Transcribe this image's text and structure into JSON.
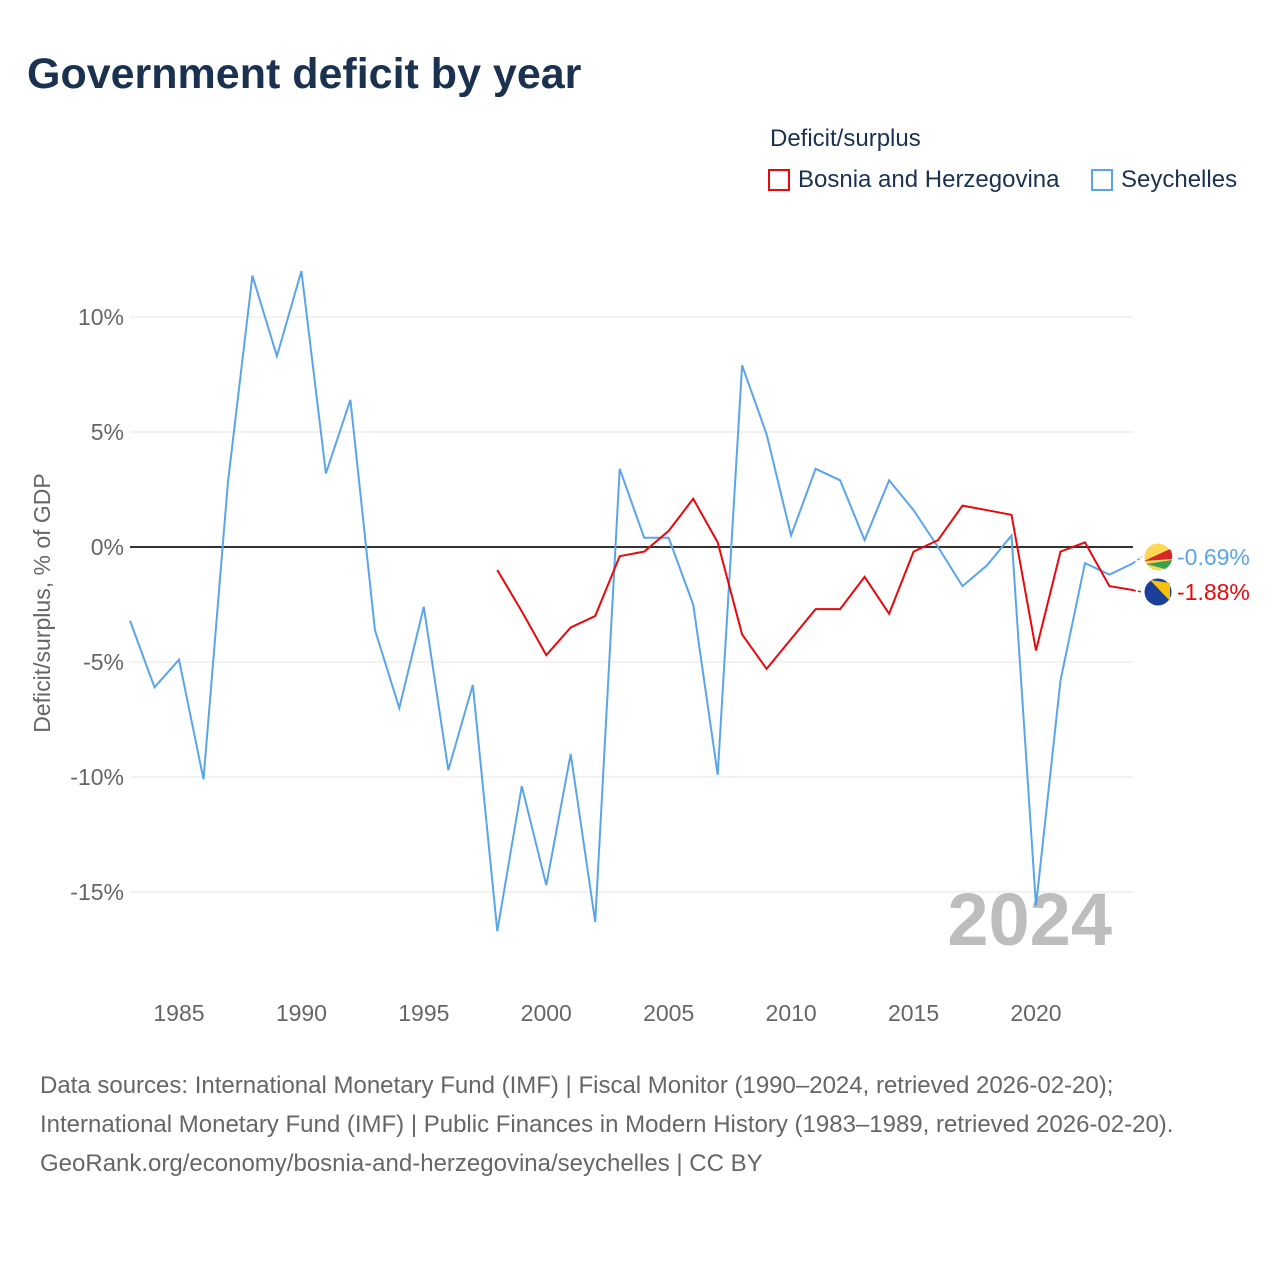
{
  "title": "Government deficit by year",
  "legend": {
    "title": "Deficit/surplus",
    "items": [
      {
        "name": "Bosnia and Herzegovina",
        "color": "#e8080c"
      },
      {
        "name": "Seychelles",
        "color": "#5aa5ea"
      }
    ]
  },
  "chart_data": {
    "type": "line",
    "title": "Government deficit by year",
    "ylabel": "Deficit/surplus, % of GDP",
    "xlabel": "",
    "xlim": [
      1983,
      2024
    ],
    "ylim": [
      -18,
      12.5
    ],
    "x_ticks": [
      "1985",
      "1990",
      "1995",
      "2000",
      "2005",
      "2010",
      "2015",
      "2020"
    ],
    "y_ticks": [
      {
        "v": 10,
        "label": "10%"
      },
      {
        "v": 5,
        "label": "5%"
      },
      {
        "v": 0,
        "label": "0%"
      },
      {
        "v": -5,
        "label": "-5%"
      },
      {
        "v": -10,
        "label": "-10%"
      },
      {
        "v": -15,
        "label": "-15%"
      }
    ],
    "year_watermark": "2024",
    "series": [
      {
        "name": "Seychelles",
        "color": "#5aa5ea",
        "end_label": "-0.69%",
        "start": 1983,
        "values": [
          -3.2,
          -6.1,
          -4.9,
          -10.1,
          2.8,
          11.8,
          8.3,
          12.0,
          3.2,
          6.4,
          -3.6,
          -7.0,
          -2.6,
          -9.7,
          -6.0,
          -16.7,
          -10.4,
          -14.7,
          -9.0,
          -16.3,
          3.4,
          0.4,
          0.4,
          -2.5,
          -9.9,
          7.9,
          4.9,
          0.5,
          3.4,
          2.9,
          0.3,
          2.9,
          1.6,
          0.0,
          -1.7,
          -0.8,
          0.5,
          -15.6,
          -5.8,
          -0.7,
          -1.2,
          -0.69
        ]
      },
      {
        "name": "Bosnia and Herzegovina",
        "color": "#e8080c",
        "end_label": "-1.88%",
        "start": 1998,
        "values": [
          -1.0,
          -2.8,
          -4.7,
          -3.5,
          -3.0,
          -0.4,
          -0.2,
          0.7,
          2.1,
          0.2,
          -3.8,
          -5.3,
          -4.0,
          -2.7,
          -2.7,
          -1.3,
          -2.9,
          -0.2,
          0.3,
          1.8,
          1.6,
          1.4,
          -4.5,
          -0.2,
          0.2,
          -1.7,
          -1.88
        ]
      }
    ]
  },
  "sources": {
    "line1": "Data sources: International Monetary Fund (IMF) | Fiscal Monitor (1990–2024, retrieved 2026-02-20); International Monetary Fund (IMF) | Public Finances in Modern History (1983–1989, retrieved 2026-02-20).",
    "line2": "GeoRank.org/economy/bosnia-and-herzegovina/seychelles | CC BY"
  }
}
